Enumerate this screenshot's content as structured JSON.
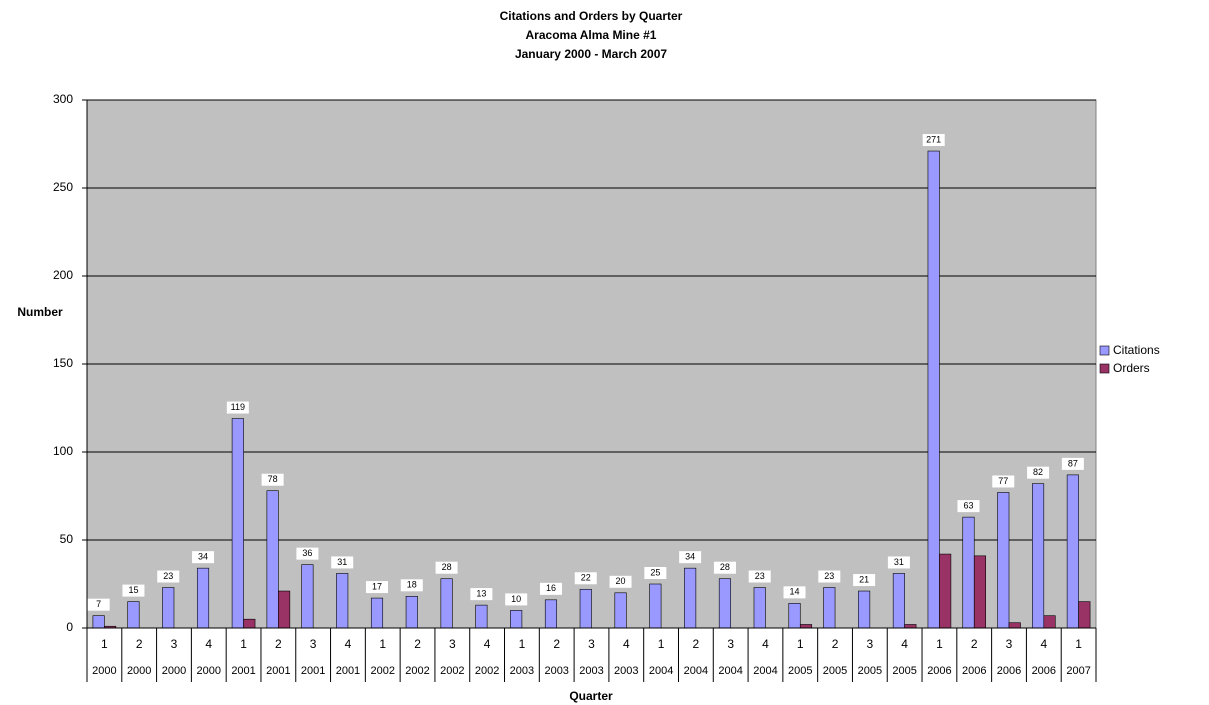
{
  "chart_data": {
    "type": "bar",
    "title": "Citations and Orders by Quarter",
    "subtitle": [
      "Aracoma Alma Mine #1",
      "January 2000 - March 2007"
    ],
    "xlabel": "Quarter",
    "ylabel": "Number",
    "categories": [
      "1",
      "2",
      "3",
      "4",
      "1",
      "2",
      "3",
      "4",
      "1",
      "2",
      "3",
      "4",
      "1",
      "2",
      "3",
      "4",
      "1",
      "2",
      "3",
      "4",
      "1",
      "2",
      "3",
      "4",
      "1",
      "2",
      "3",
      "4",
      "1"
    ],
    "category_groups": [
      "2000",
      "2000",
      "2000",
      "2000",
      "2001",
      "2001",
      "2001",
      "2001",
      "2002",
      "2002",
      "2002",
      "2002",
      "2003",
      "2003",
      "2003",
      "2003",
      "2004",
      "2004",
      "2004",
      "2004",
      "2005",
      "2005",
      "2005",
      "2005",
      "2006",
      "2006",
      "2006",
      "2006",
      "2007"
    ],
    "series": [
      {
        "name": "Citations",
        "color": "#9999ff",
        "data_labels": true,
        "values": [
          7,
          15,
          23,
          34,
          119,
          78,
          36,
          31,
          17,
          18,
          28,
          13,
          10,
          16,
          22,
          20,
          25,
          34,
          28,
          23,
          14,
          23,
          21,
          31,
          271,
          63,
          77,
          82,
          87
        ]
      },
      {
        "name": "Orders",
        "color": "#993366",
        "data_labels": false,
        "values": [
          1,
          0,
          0,
          0,
          5,
          21,
          0,
          0,
          0,
          0,
          0,
          0,
          0,
          0,
          0,
          0,
          0,
          0,
          0,
          0,
          2,
          0,
          0,
          2,
          42,
          41,
          3,
          7,
          15
        ]
      }
    ],
    "ylim": [
      0,
      300
    ],
    "yticks": [
      0,
      50,
      100,
      150,
      200,
      250,
      300
    ],
    "grid": true,
    "plot_background": "#c0c0c0",
    "legend": "right"
  }
}
